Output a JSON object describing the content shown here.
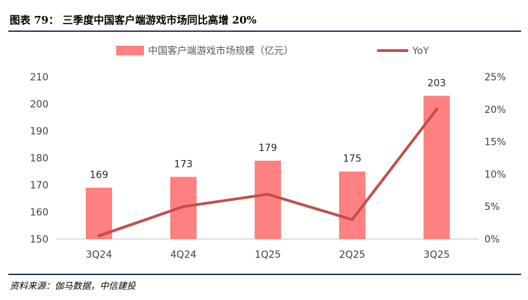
{
  "figure": {
    "title": "图表 79：  三季度中国客户端游戏市场同比高增 20%",
    "source": "资料来源：伽马数据，中信建投"
  },
  "colors": {
    "bar": "#ff8080",
    "line": "#c0504d",
    "axis": "#bfbfbf",
    "rule": "#1f3a5f"
  },
  "chart_data": {
    "type": "bar",
    "categories": [
      "3Q24",
      "4Q24",
      "1Q25",
      "2Q25",
      "3Q25"
    ],
    "series": [
      {
        "name": "中国客户端游戏市场规模（亿元）",
        "type": "bar",
        "axis": "left",
        "values": [
          169,
          173,
          179,
          175,
          203
        ]
      },
      {
        "name": "YoY",
        "type": "line",
        "axis": "right",
        "values": [
          0.5,
          5.0,
          6.9,
          3.0,
          20.0
        ]
      }
    ],
    "y_left": {
      "min": 150,
      "max": 210,
      "ticks": [
        150,
        160,
        170,
        180,
        190,
        200,
        210
      ]
    },
    "y_right": {
      "min": 0,
      "max": 25,
      "ticks": [
        0,
        5,
        10,
        15,
        20,
        25
      ],
      "unit": "%"
    },
    "legend_position": "top",
    "grid": false
  }
}
